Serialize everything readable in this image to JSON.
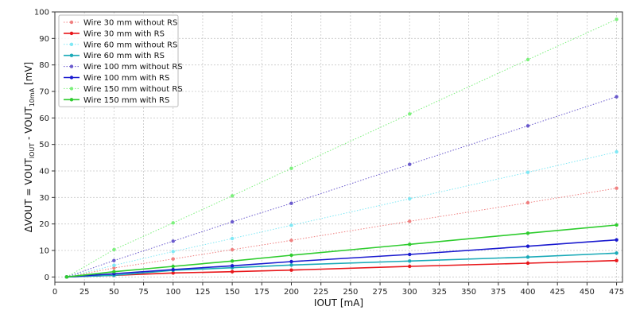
{
  "chart_data": {
    "type": "line",
    "xlabel": "IOUT [mA]",
    "ylabel": {
      "prefix": "ΔVOUT = VOUT",
      "sub1": "IOUT",
      "mid": " - VOUT",
      "sub2": "10mA",
      "suffix": " [mV]"
    },
    "xlim": [
      0,
      480
    ],
    "ylim": [
      -2,
      100
    ],
    "xticks": [
      0,
      25,
      50,
      75,
      100,
      125,
      150,
      175,
      200,
      225,
      250,
      275,
      300,
      325,
      350,
      375,
      400,
      425,
      450,
      475
    ],
    "yticks": [
      0,
      10,
      20,
      30,
      40,
      50,
      60,
      70,
      80,
      90,
      100
    ],
    "grid": true,
    "legend_position": "top-left",
    "x": [
      10,
      50,
      100,
      150,
      200,
      300,
      400,
      475
    ],
    "series": [
      {
        "name": "Wire 30 mm without RS",
        "color": "#f08080",
        "style": "dotted",
        "values": [
          0,
          3.4,
          6.8,
          10.3,
          13.8,
          21.0,
          28.0,
          33.5
        ]
      },
      {
        "name": "Wire 30 mm with RS",
        "color": "#e8161a",
        "style": "solid",
        "values": [
          0,
          0.6,
          1.5,
          2.0,
          2.6,
          4.0,
          5.2,
          6.2
        ]
      },
      {
        "name": "Wire 60 mm without RS",
        "color": "#7fe8f5",
        "style": "dotted",
        "values": [
          0,
          4.4,
          9.6,
          14.5,
          19.5,
          29.5,
          39.5,
          47.2
        ]
      },
      {
        "name": "Wire 60 mm with RS",
        "color": "#1aaab8",
        "style": "solid",
        "values": [
          0,
          0.6,
          2.5,
          3.5,
          4.5,
          6.0,
          7.5,
          9.0
        ]
      },
      {
        "name": "Wire 100 mm without RS",
        "color": "#6a5acd",
        "style": "dotted",
        "values": [
          0,
          6.2,
          13.5,
          20.8,
          27.8,
          42.5,
          57.0,
          68.0
        ]
      },
      {
        "name": "Wire 100 mm with RS",
        "color": "#1a1acf",
        "style": "solid",
        "values": [
          0,
          1.2,
          2.8,
          4.2,
          5.8,
          8.5,
          11.6,
          14.0
        ]
      },
      {
        "name": "Wire 150 mm without RS",
        "color": "#7cf07c",
        "style": "dotted",
        "values": [
          0,
          10.3,
          20.4,
          30.6,
          41.0,
          61.5,
          82.0,
          97.2
        ]
      },
      {
        "name": "Wire 150 mm with RS",
        "color": "#2ecc2e",
        "style": "solid",
        "values": [
          0,
          2.0,
          4.0,
          6.0,
          8.2,
          12.3,
          16.5,
          19.6
        ]
      }
    ]
  }
}
